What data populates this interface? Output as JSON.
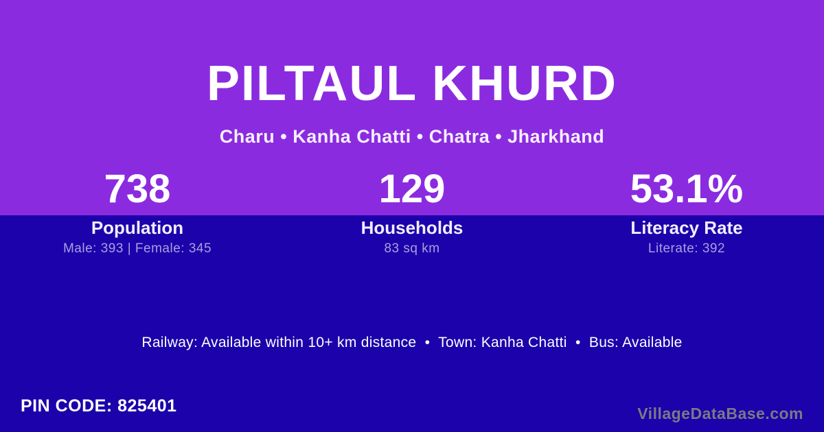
{
  "colors": {
    "hero_purple": "#8B2BE0",
    "body_blue": "#1B02AB",
    "text_primary": "#FFFFFF",
    "text_detail": "rgba(255,255,255,0.62)",
    "watermark_gray": "#7B7985"
  },
  "header": {
    "title": "PILTAUL KHURD",
    "subtitle": "Charu • Kanha Chatti • Chatra • Jharkhand"
  },
  "stats": [
    {
      "value": "738",
      "label": "Population",
      "detail": "Male: 393 | Female: 345"
    },
    {
      "value": "129",
      "label": "Households",
      "detail": "83 sq km"
    },
    {
      "value": "53.1%",
      "label": "Literacy Rate",
      "detail": "Literate: 392"
    }
  ],
  "transport": {
    "line": "Railway: Available within 10+ km distance  •  Town: Kanha Chatti  •  Bus: Available"
  },
  "footer": {
    "pin_code": "PIN CODE: 825401",
    "watermark": "VillageDataBase.com"
  }
}
